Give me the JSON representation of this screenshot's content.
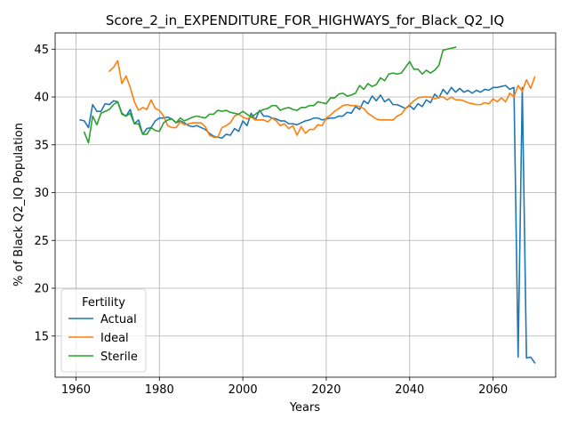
{
  "chart_data": {
    "type": "line",
    "title": "Score_2_in_EXPENDITURE_FOR_HIGHWAYS_for_Black_Q2_IQ",
    "xlabel": "Years",
    "ylabel": "% of Black Q2_IQ Population",
    "xlim": [
      1955,
      2075
    ],
    "ylim": [
      10.7,
      46.7
    ],
    "xticks": [
      1960,
      1980,
      2000,
      2020,
      2040,
      2060
    ],
    "yticks": [
      15,
      20,
      25,
      30,
      35,
      40,
      45
    ],
    "grid": true,
    "legend": {
      "title": "Fertility",
      "placement": "lower-left"
    },
    "series": [
      {
        "name": "Actual",
        "color": "#1f77b4",
        "x": [
          1961,
          1962,
          1963,
          1964,
          1965,
          1966,
          1967,
          1968,
          1969,
          1970,
          1971,
          1972,
          1973,
          1974,
          1975,
          1976,
          1977,
          1978,
          1979,
          1980,
          1981,
          1982,
          1983,
          1984,
          1985,
          1986,
          1987,
          1988,
          1989,
          1990,
          1991,
          1992,
          1993,
          1994,
          1995,
          1996,
          1997,
          1998,
          1999,
          2000,
          2001,
          2002,
          2003,
          2004,
          2005,
          2006,
          2007,
          2008,
          2009,
          2010,
          2011,
          2012,
          2013,
          2014,
          2015,
          2016,
          2017,
          2018,
          2019,
          2020,
          2021,
          2022,
          2023,
          2024,
          2025,
          2026,
          2027,
          2028,
          2029,
          2030,
          2031,
          2032,
          2033,
          2034,
          2035,
          2036,
          2037,
          2038,
          2039,
          2040,
          2041,
          2042,
          2043,
          2044,
          2045,
          2046,
          2047,
          2048,
          2049,
          2050,
          2051,
          2052,
          2053,
          2054,
          2055,
          2056,
          2057,
          2058,
          2059,
          2060,
          2061,
          2062,
          2063,
          2064,
          2065,
          2066,
          2067,
          2068,
          2069,
          2070
        ],
        "values": [
          37.6,
          37.5,
          36.8,
          39.2,
          38.5,
          38.5,
          39.3,
          39.2,
          39.6,
          39.5,
          38.3,
          38.0,
          38.7,
          37.2,
          37.6,
          36.1,
          36.7,
          36.8,
          37.5,
          37.8,
          37.8,
          37.9,
          37.7,
          37.3,
          37.5,
          37.3,
          37.0,
          36.9,
          37.0,
          36.8,
          36.6,
          36.2,
          35.9,
          35.8,
          35.7,
          36.1,
          36.0,
          36.7,
          36.4,
          37.5,
          37.0,
          38.3,
          37.6,
          38.6,
          38.0,
          38.0,
          37.8,
          37.7,
          37.5,
          37.5,
          37.2,
          37.2,
          37.1,
          37.3,
          37.5,
          37.6,
          37.8,
          37.8,
          37.6,
          37.7,
          37.8,
          37.8,
          38.0,
          38.0,
          38.4,
          38.3,
          39.0,
          38.7,
          39.6,
          39.3,
          40.1,
          39.6,
          40.2,
          39.5,
          39.8,
          39.2,
          39.2,
          39.0,
          38.8,
          39.1,
          38.7,
          39.3,
          39.0,
          39.7,
          39.4,
          40.3,
          39.9,
          40.8,
          40.3,
          41.0,
          40.5,
          40.9,
          40.5,
          40.7,
          40.4,
          40.7,
          40.5,
          40.8,
          40.7,
          41.0,
          41.0,
          41.1,
          41.2,
          40.8,
          41.0,
          12.8,
          41.0,
          12.7,
          12.8,
          12.2
        ]
      },
      {
        "name": "Ideal",
        "color": "#ff7f0e",
        "x": [
          1968,
          1969,
          1970,
          1971,
          1972,
          1973,
          1974,
          1975,
          1976,
          1977,
          1978,
          1979,
          1980,
          1981,
          1982,
          1983,
          1984,
          1985,
          1986,
          1987,
          1988,
          1989,
          1990,
          1991,
          1992,
          1993,
          1994,
          1995,
          1996,
          1997,
          1998,
          1999,
          2000,
          2001,
          2002,
          2003,
          2004,
          2005,
          2006,
          2007,
          2008,
          2009,
          2010,
          2011,
          2012,
          2013,
          2014,
          2015,
          2016,
          2017,
          2018,
          2019,
          2020,
          2021,
          2022,
          2023,
          2024,
          2025,
          2026,
          2027,
          2028,
          2029,
          2030,
          2031,
          2032,
          2033,
          2034,
          2035,
          2036,
          2037,
          2038,
          2039,
          2040,
          2041,
          2042,
          2043,
          2044,
          2045,
          2046,
          2047,
          2048,
          2049,
          2050,
          2051,
          2052,
          2053,
          2054,
          2055,
          2056,
          2057,
          2058,
          2059,
          2060,
          2061,
          2062,
          2063,
          2064,
          2065,
          2066,
          2067,
          2068,
          2069,
          2070
        ],
        "values": [
          42.7,
          43.1,
          43.8,
          41.4,
          42.2,
          41.0,
          39.5,
          38.6,
          38.9,
          38.7,
          39.7,
          38.8,
          38.6,
          38.0,
          37.0,
          36.8,
          36.8,
          37.4,
          37.1,
          37.2,
          37.3,
          37.3,
          37.3,
          36.9,
          36.0,
          35.8,
          35.8,
          36.8,
          37.0,
          37.3,
          38.0,
          38.2,
          37.9,
          37.7,
          37.9,
          37.6,
          37.6,
          37.6,
          37.4,
          37.8,
          37.5,
          37.0,
          37.2,
          36.7,
          37.0,
          36.0,
          36.9,
          36.2,
          36.6,
          36.6,
          37.1,
          37.0,
          37.8,
          38.1,
          38.5,
          38.8,
          39.1,
          39.2,
          39.1,
          39.1,
          39.0,
          38.8,
          38.3,
          38.0,
          37.7,
          37.6,
          37.6,
          37.6,
          37.6,
          38.0,
          38.2,
          38.8,
          39.2,
          39.6,
          39.9,
          40.0,
          40.0,
          40.0,
          39.8,
          40.0,
          40.0,
          39.7,
          40.0,
          39.7,
          39.7,
          39.6,
          39.4,
          39.3,
          39.2,
          39.2,
          39.4,
          39.3,
          39.8,
          39.5,
          39.9,
          39.5,
          40.4,
          40.0,
          41.2,
          40.6,
          41.8,
          40.9,
          42.1
        ]
      },
      {
        "name": "Sterile",
        "color": "#2ca02c",
        "x": [
          1962,
          1963,
          1964,
          1965,
          1966,
          1967,
          1968,
          1969,
          1970,
          1971,
          1972,
          1973,
          1974,
          1975,
          1976,
          1977,
          1978,
          1979,
          1980,
          1981,
          1982,
          1983,
          1984,
          1985,
          1986,
          1987,
          1988,
          1989,
          1990,
          1991,
          1992,
          1993,
          1994,
          1995,
          1996,
          1997,
          1998,
          1999,
          2000,
          2001,
          2002,
          2003,
          2004,
          2005,
          2006,
          2007,
          2008,
          2009,
          2010,
          2011,
          2012,
          2013,
          2014,
          2015,
          2016,
          2017,
          2018,
          2019,
          2020,
          2021,
          2022,
          2023,
          2024,
          2025,
          2026,
          2027,
          2028,
          2029,
          2030,
          2031,
          2032,
          2033,
          2034,
          2035,
          2036,
          2037,
          2038,
          2039,
          2040,
          2041,
          2042,
          2043,
          2044,
          2045,
          2046,
          2047,
          2048,
          2049,
          2050,
          2051
        ],
        "values": [
          36.3,
          35.2,
          38.0,
          37.1,
          38.3,
          38.5,
          38.7,
          39.2,
          39.5,
          38.2,
          38.0,
          38.3,
          37.2,
          37.2,
          36.1,
          36.1,
          36.8,
          36.5,
          36.4,
          37.3,
          37.6,
          37.7,
          37.3,
          37.8,
          37.5,
          37.7,
          37.9,
          38.0,
          37.9,
          37.8,
          38.2,
          38.2,
          38.6,
          38.5,
          38.6,
          38.4,
          38.3,
          38.2,
          38.5,
          38.2,
          37.9,
          38.2,
          38.5,
          38.7,
          38.8,
          39.1,
          39.1,
          38.6,
          38.8,
          38.9,
          38.7,
          38.6,
          38.9,
          38.9,
          39.1,
          39.1,
          39.5,
          39.4,
          39.3,
          39.9,
          39.9,
          40.3,
          40.4,
          40.1,
          40.2,
          40.4,
          41.2,
          40.8,
          41.4,
          41.1,
          41.3,
          42.0,
          41.7,
          42.4,
          42.5,
          42.4,
          42.5,
          43.1,
          43.7,
          42.9,
          42.9,
          42.4,
          42.8,
          42.5,
          42.8,
          43.3,
          44.9,
          45.0,
          45.1,
          45.2
        ]
      }
    ]
  }
}
